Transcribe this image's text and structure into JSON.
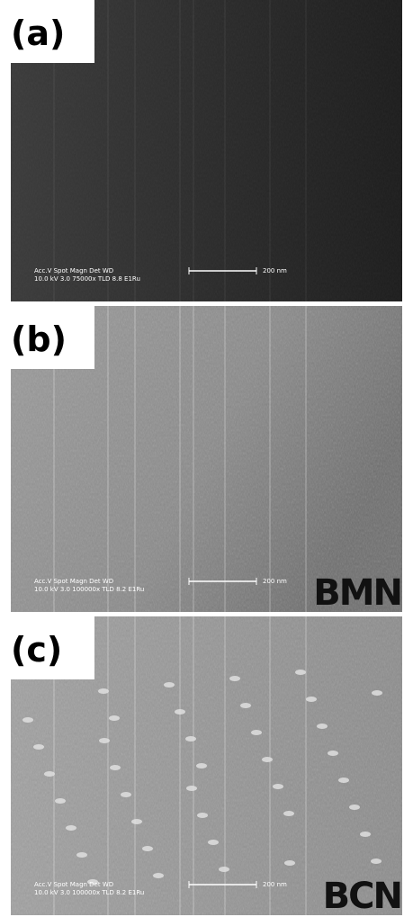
{
  "panels": [
    {
      "label": "(a)",
      "info_header": "Acc.V  Spot Magn    Det  WD",
      "info_values": "10.0 kV 3.0  75000x  TLD  8.8  E1Ru",
      "scale_bar": "200 nm"
    },
    {
      "label": "(b)",
      "info_header": "Acc.V  Spot Magn    Det  WD",
      "info_values": "10.0 kV 3.0 100000x TLD  8.2  E1Ru",
      "scale_bar": "200 nm",
      "tag": "BMN"
    },
    {
      "label": "(c)",
      "info_header": "Acc.V  Spot Magn    Det  WD",
      "info_values": "10.0 kV 3.0 100000x TLD  8.2  E1Ru",
      "scale_bar": "200 nm",
      "tag": "BCN"
    }
  ]
}
